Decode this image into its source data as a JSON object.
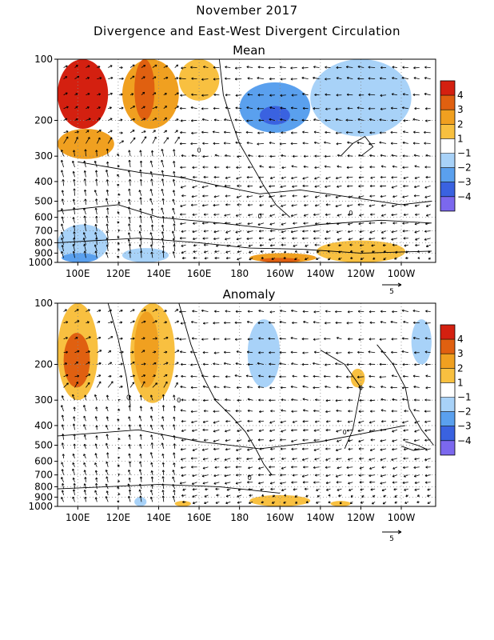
{
  "title": "November 2017",
  "subtitle": "Divergence and East-West Divergent Circulation",
  "colors": {
    "neg4": "#7b68ee",
    "neg3": "#3a62e0",
    "neg2": "#5aa0ee",
    "neg1": "#a8d2f8",
    "zero": "#ffffff",
    "pos1": "#f8c040",
    "pos2": "#f0a020",
    "pos3": "#e06010",
    "pos4": "#d42010"
  },
  "chart_data": [
    {
      "type": "heatmap",
      "title": "Mean",
      "x_ticks": [
        "100E",
        "120E",
        "140E",
        "160E",
        "180",
        "160W",
        "140W",
        "120W",
        "100W"
      ],
      "y_ticks": [
        "100",
        "200",
        "300",
        "400",
        "500",
        "600",
        "700",
        "800",
        "900",
        "1000"
      ],
      "y_scale": "log",
      "ylim": [
        1000,
        100
      ],
      "grid": true,
      "colorbar": {
        "labels": [
          "4",
          "3",
          "2",
          "1",
          "-1",
          "-2",
          "-3",
          "-4"
        ],
        "levels": [
          -4,
          -3,
          -2,
          -1,
          0,
          1,
          2,
          3,
          4
        ]
      },
      "reference_vector": "5",
      "contour_labels": [
        "0",
        "0",
        "0"
      ],
      "regions": [
        {
          "lon": [
            90,
            115
          ],
          "p": [
            100,
            220
          ],
          "level": 4
        },
        {
          "lon": [
            90,
            118
          ],
          "p": [
            220,
            310
          ],
          "level": 2
        },
        {
          "lon": [
            128,
            138
          ],
          "p": [
            100,
            200
          ],
          "level": 3
        },
        {
          "lon": [
            122,
            150
          ],
          "p": [
            100,
            220
          ],
          "level": 2
        },
        {
          "lon": [
            150,
            170
          ],
          "p": [
            100,
            160
          ],
          "level": 1
        },
        {
          "lon": [
            180,
            215
          ],
          "p": [
            130,
            230
          ],
          "level": -2
        },
        {
          "lon": [
            190,
            205
          ],
          "p": [
            170,
            210
          ],
          "level": -3
        },
        {
          "lon": [
            215,
            265
          ],
          "p": [
            100,
            240
          ],
          "level": -1
        },
        {
          "lon": [
            90,
            115
          ],
          "p": [
            650,
            1000
          ],
          "level": -1
        },
        {
          "lon": [
            92,
            110
          ],
          "p": [
            900,
            1000
          ],
          "level": -2
        },
        {
          "lon": [
            122,
            145
          ],
          "p": [
            850,
            1000
          ],
          "level": -1
        },
        {
          "lon": [
            185,
            218
          ],
          "p": [
            900,
            1000
          ],
          "level": 2
        },
        {
          "lon": [
            190,
            210
          ],
          "p": [
            950,
            1000
          ],
          "level": 3
        },
        {
          "lon": [
            218,
            262
          ],
          "p": [
            780,
            1000
          ],
          "level": 1
        }
      ]
    },
    {
      "type": "heatmap",
      "title": "Anomaly",
      "x_ticks": [
        "100E",
        "120E",
        "140E",
        "160E",
        "180",
        "160W",
        "140W",
        "120W",
        "100W"
      ],
      "y_ticks": [
        "100",
        "200",
        "300",
        "400",
        "500",
        "600",
        "700",
        "800",
        "900",
        "1000"
      ],
      "y_scale": "log",
      "ylim": [
        1000,
        100
      ],
      "grid": true,
      "colorbar": {
        "labels": [
          "4",
          "3",
          "2",
          "1",
          "-1",
          "-2",
          "-3",
          "-4"
        ],
        "levels": [
          -4,
          -3,
          -2,
          -1,
          0,
          1,
          2,
          3,
          4
        ]
      },
      "reference_vector": "5",
      "contour_labels": [
        "0",
        "0",
        "0",
        "0",
        "0"
      ],
      "regions": [
        {
          "lon": [
            90,
            110
          ],
          "p": [
            100,
            300
          ],
          "level": 1
        },
        {
          "lon": [
            93,
            106
          ],
          "p": [
            140,
            260
          ],
          "level": 3
        },
        {
          "lon": [
            126,
            148
          ],
          "p": [
            100,
            310
          ],
          "level": 1
        },
        {
          "lon": [
            128,
            140
          ],
          "p": [
            110,
            260
          ],
          "level": 2
        },
        {
          "lon": [
            184,
            200
          ],
          "p": [
            120,
            260
          ],
          "level": -1
        },
        {
          "lon": [
            235,
            242
          ],
          "p": [
            210,
            260
          ],
          "level": 1
        },
        {
          "lon": [
            265,
            275
          ],
          "p": [
            120,
            200
          ],
          "level": -1
        },
        {
          "lon": [
            128,
            134
          ],
          "p": [
            900,
            1000
          ],
          "level": -1
        },
        {
          "lon": [
            148,
            156
          ],
          "p": [
            940,
            1000
          ],
          "level": 1
        },
        {
          "lon": [
            185,
            215
          ],
          "p": [
            880,
            1000
          ],
          "level": 1
        },
        {
          "lon": [
            225,
            235
          ],
          "p": [
            940,
            1000
          ],
          "level": 1
        }
      ]
    }
  ]
}
